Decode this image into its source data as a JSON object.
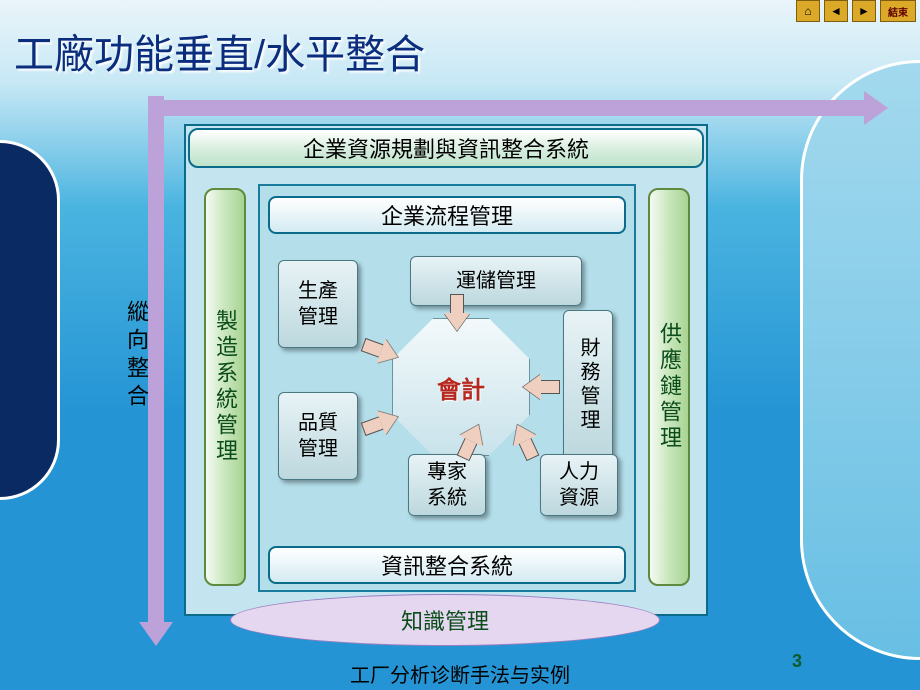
{
  "meta": {
    "page_number": "3",
    "footer": "工厂分析诊断手法与实例"
  },
  "toolbar": {
    "end_label": "結束"
  },
  "title": "工廠功能垂直/水平整合",
  "axes": {
    "vertical_label": "縱向整合",
    "arrow_color": "#bca2d9"
  },
  "colors": {
    "bg_top": "#eaf5fa",
    "bg_mid": "#4ab4e0",
    "bg_bot": "#2494d4",
    "frame_border": "#0b6b8a",
    "frame_fill": "#c4e5f0",
    "inner_fill": "#b3deea",
    "pillar_text": "#0a4c1a",
    "center_text": "#b62820",
    "arrow_fill": "#eecfc0",
    "ellipse_fill": "#e4d7ef",
    "title_color": "#0b2d7d"
  },
  "diagram": {
    "top_banner": "企業資源規劃與資訊整合系統",
    "left_pillar": "製造系統管理",
    "right_pillar": "供應鏈管理",
    "row_top": "企業流程管理",
    "row_bottom": "資訊整合系統",
    "center": "會計",
    "nodes": {
      "production": "生產\n管理",
      "quality": "品質\n管理",
      "logistics": "運儲管理",
      "finance": "財務管理",
      "expert": "專家\n系統",
      "hr": "人力\n資源"
    },
    "knowledge": "知識管理"
  }
}
